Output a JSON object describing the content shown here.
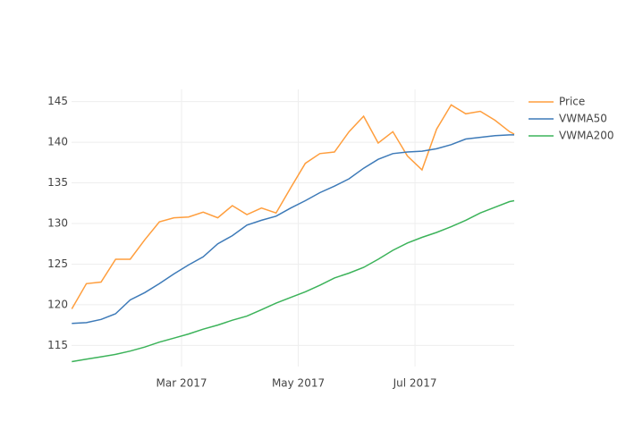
{
  "chart_data": {
    "type": "line",
    "x": [
      0.12,
      0.37,
      0.62,
      0.87,
      1.12,
      1.37,
      1.62,
      1.87,
      2.12,
      2.37,
      2.62,
      2.87,
      3.12,
      3.37,
      3.62,
      3.87,
      4.12,
      4.37,
      4.62,
      4.87,
      5.12,
      5.37,
      5.62,
      5.87,
      6.12,
      6.37,
      6.62,
      6.87,
      7.12,
      7.37,
      7.62,
      7.7
    ],
    "series": [
      {
        "name": "Price",
        "color": "#ff9e3d",
        "values": [
          119.5,
          122.6,
          122.8,
          125.6,
          125.6,
          128.0,
          130.2,
          130.7,
          130.8,
          131.4,
          130.7,
          132.2,
          131.1,
          131.9,
          131.3,
          134.4,
          137.4,
          138.6,
          138.8,
          141.3,
          143.2,
          139.9,
          141.3,
          138.3,
          136.6,
          141.6,
          144.6,
          143.5,
          143.8,
          142.7,
          141.3,
          141.0
        ]
      },
      {
        "name": "VWMA50",
        "color": "#3d7ab8",
        "values": [
          117.7,
          117.8,
          118.2,
          118.9,
          120.6,
          121.5,
          122.6,
          123.8,
          124.9,
          125.9,
          127.5,
          128.5,
          129.8,
          130.4,
          130.9,
          131.9,
          132.8,
          133.8,
          134.6,
          135.5,
          136.8,
          137.9,
          138.6,
          138.8,
          138.9,
          139.2,
          139.7,
          140.4,
          140.6,
          140.8,
          140.9,
          140.9
        ]
      },
      {
        "name": "VWMA200",
        "color": "#3cb35a",
        "values": [
          113.0,
          113.3,
          113.6,
          113.9,
          114.3,
          114.8,
          115.4,
          115.9,
          116.4,
          117.0,
          117.5,
          118.1,
          118.6,
          119.4,
          120.2,
          120.9,
          121.6,
          122.4,
          123.3,
          123.9,
          124.6,
          125.6,
          126.7,
          127.6,
          128.3,
          128.9,
          129.6,
          130.4,
          131.3,
          132.0,
          132.7,
          132.8
        ]
      }
    ],
    "xlim": [
      0.115,
      7.7
    ],
    "xticks": [
      {
        "value": 2,
        "label": "Mar 2017"
      },
      {
        "value": 4,
        "label": "May 2017"
      },
      {
        "value": 6,
        "label": "Jul 2017"
      }
    ],
    "ylim": [
      112.4,
      146.5
    ],
    "yticks": [
      115,
      120,
      125,
      130,
      135,
      140,
      145
    ],
    "grid": true
  }
}
